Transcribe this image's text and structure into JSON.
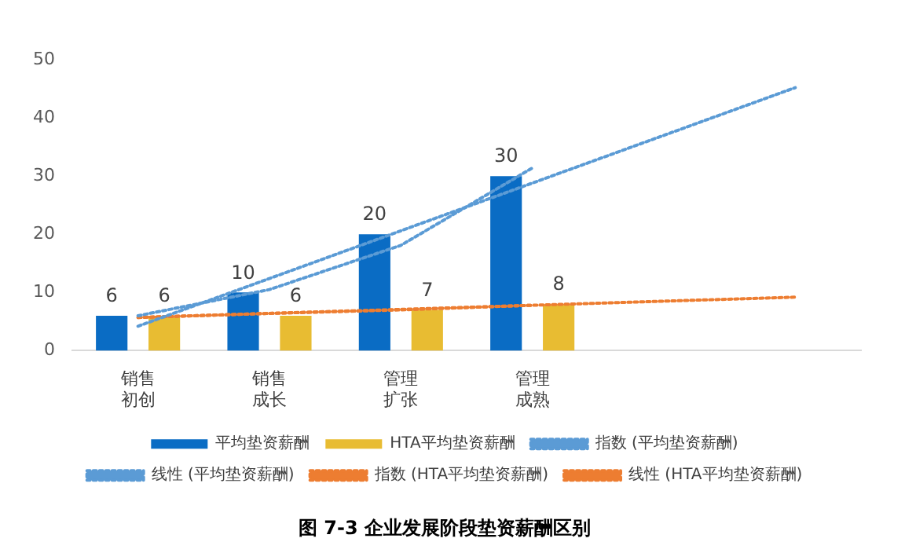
{
  "chart_data": {
    "type": "bar",
    "title": "图 7-3 企业发展阶段垫资薪酬区别",
    "categories": [
      "销售初创",
      "销售成长",
      "管理扩张",
      "管理成熟",
      null,
      null
    ],
    "series": [
      {
        "name": "平均垫资薪酬",
        "color": "#0a6cc4",
        "values": [
          6,
          10,
          20,
          30,
          null,
          null
        ],
        "value_labels": [
          "6",
          "10",
          "20",
          "30",
          null,
          null
        ]
      },
      {
        "name": "HTA平均垫资薪酬",
        "color": "#e8bc32",
        "values": [
          6,
          6,
          7,
          8,
          null,
          null
        ],
        "value_labels": [
          "6",
          "6",
          "7",
          "8",
          null,
          null
        ]
      },
      {
        "name": "指数 (平均垫资薪酬)",
        "type": "line",
        "line_style": "dotted",
        "color": "#5b9bd5",
        "values": [
          6.0,
          10.5,
          18.1,
          31.4,
          null,
          null
        ]
      },
      {
        "name": "线性 (平均垫资薪酬)",
        "type": "line",
        "line_style": "dotted",
        "color": "#5b9bd5",
        "values": [
          4.2,
          12.4,
          20.6,
          28.8,
          37.0,
          45.2
        ]
      },
      {
        "name": "指数 (HTA平均垫资薪酬)",
        "type": "line",
        "line_style": "dotted",
        "color": "#ed7d31",
        "values": [
          5.7,
          6.4,
          7.0,
          7.8,
          null,
          null
        ]
      },
      {
        "name": "线性 (HTA平均垫资薪酬)",
        "type": "line",
        "line_style": "dotted",
        "color": "#ed7d31",
        "values": [
          5.7,
          6.4,
          7.1,
          7.8,
          8.5,
          9.2
        ]
      }
    ],
    "ylim": [
      0,
      50
    ],
    "yticks": [
      0,
      10,
      20,
      30,
      40,
      50
    ],
    "grid": false,
    "legend": "bottom",
    "marker": "none"
  }
}
